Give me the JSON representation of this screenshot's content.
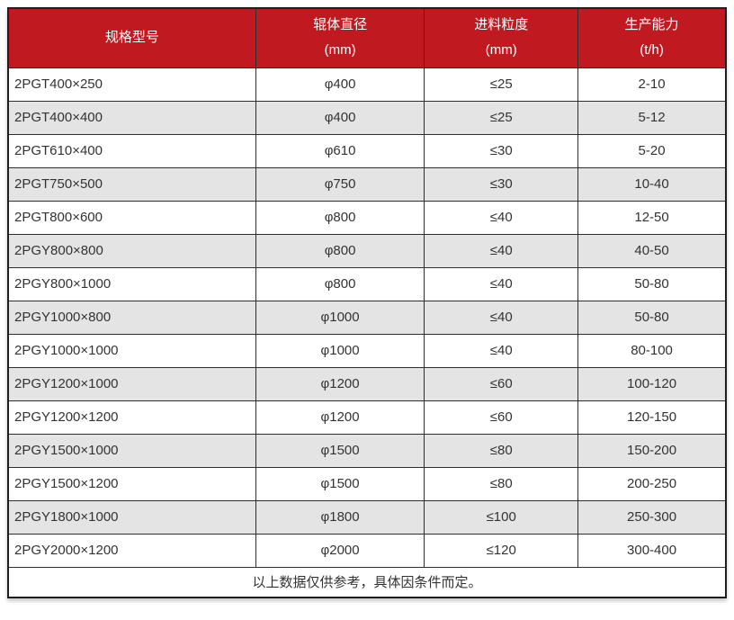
{
  "table": {
    "columns": [
      {
        "label": "规格型号",
        "unit": ""
      },
      {
        "label": "辊体直径",
        "unit": "(mm)"
      },
      {
        "label": "进料粒度",
        "unit": "(mm)"
      },
      {
        "label": "生产能力",
        "unit": "(t/h)"
      }
    ],
    "rows": [
      [
        "2PGT400×250",
        "φ400",
        "≤25",
        "2-10"
      ],
      [
        "2PGT400×400",
        "φ400",
        "≤25",
        "5-12"
      ],
      [
        "2PGT610×400",
        "φ610",
        "≤30",
        "5-20"
      ],
      [
        "2PGT750×500",
        "φ750",
        "≤30",
        "10-40"
      ],
      [
        "2PGT800×600",
        "φ800",
        "≤40",
        "12-50"
      ],
      [
        "2PGY800×800",
        "φ800",
        "≤40",
        "40-50"
      ],
      [
        "2PGY800×1000",
        "φ800",
        "≤40",
        "50-80"
      ],
      [
        "2PGY1000×800",
        "φ1000",
        "≤40",
        "50-80"
      ],
      [
        "2PGY1000×1000",
        "φ1000",
        "≤40",
        "80-100"
      ],
      [
        "2PGY1200×1000",
        "φ1200",
        "≤60",
        "100-120"
      ],
      [
        "2PGY1200×1200",
        "φ1200",
        "≤60",
        "120-150"
      ],
      [
        "2PGY1500×1000",
        "φ1500",
        "≤80",
        "150-200"
      ],
      [
        "2PGY1500×1200",
        "φ1500",
        "≤80",
        "200-250"
      ],
      [
        "2PGY1800×1000",
        "φ1800",
        "≤100",
        "250-300"
      ],
      [
        "2PGY2000×1200",
        "φ2000",
        "≤120",
        "300-400"
      ]
    ],
    "footnote": "以上数据仅供参考，具体因条件而定。",
    "colors": {
      "header_bg": "#c01a20",
      "header_text": "#ffffff",
      "row_alt_bg": "#e4e4e4",
      "row_bg": "#ffffff",
      "border": "#2e2e2e",
      "text": "#333333"
    }
  }
}
